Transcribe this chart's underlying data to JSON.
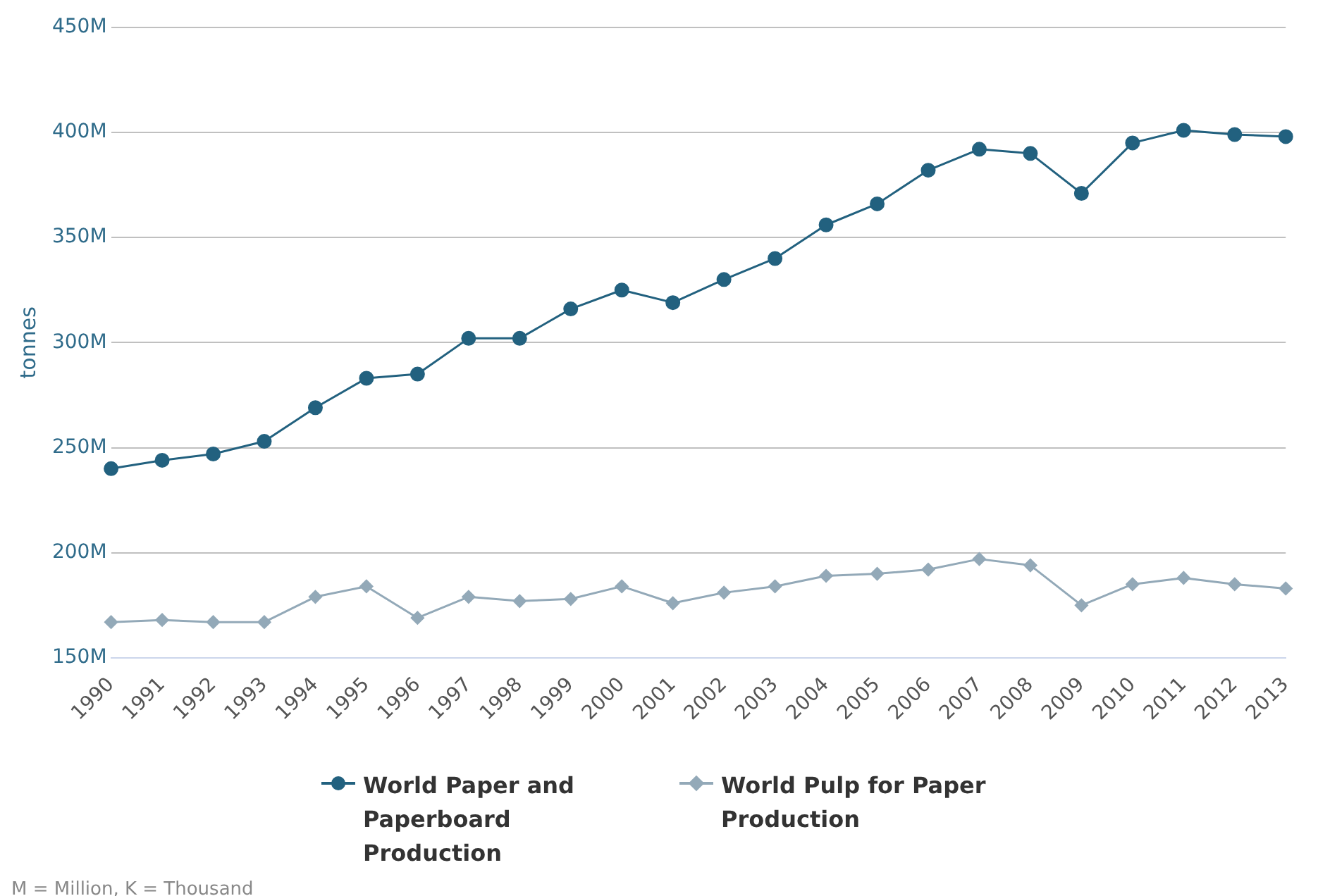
{
  "chart_data": {
    "type": "line",
    "ylabel": "tonnes",
    "categories": [
      "1990",
      "1991",
      "1992",
      "1993",
      "1994",
      "1995",
      "1996",
      "1997",
      "1998",
      "1999",
      "2000",
      "2001",
      "2002",
      "2003",
      "2004",
      "2005",
      "2006",
      "2007",
      "2008",
      "2009",
      "2010",
      "2011",
      "2012",
      "2013"
    ],
    "series": [
      {
        "name": "World Paper and Paperboard Production",
        "color": "#22617f",
        "marker": "circle",
        "values": [
          240000000,
          244000000,
          247000000,
          253000000,
          269000000,
          283000000,
          285000000,
          302000000,
          302000000,
          316000000,
          325000000,
          319000000,
          330000000,
          340000000,
          356000000,
          366000000,
          382000000,
          392000000,
          390000000,
          371000000,
          395000000,
          401000000,
          399000000,
          398000000
        ]
      },
      {
        "name": "World Pulp for Paper Production",
        "color": "#93a9b8",
        "marker": "diamond",
        "values": [
          167000000,
          168000000,
          167000000,
          167000000,
          179000000,
          184000000,
          169000000,
          179000000,
          177000000,
          178000000,
          184000000,
          176000000,
          181000000,
          184000000,
          189000000,
          190000000,
          192000000,
          197000000,
          194000000,
          175000000,
          185000000,
          188000000,
          185000000,
          183000000
        ]
      }
    ],
    "ylim": [
      150000000,
      450000000
    ],
    "yticks": [
      {
        "value": 150000000,
        "label": "150M"
      },
      {
        "value": 200000000,
        "label": "200M"
      },
      {
        "value": 250000000,
        "label": "250M"
      },
      {
        "value": 300000000,
        "label": "300M"
      },
      {
        "value": 350000000,
        "label": "350M"
      },
      {
        "value": 400000000,
        "label": "400M"
      },
      {
        "value": 450000000,
        "label": "450M"
      }
    ],
    "grid": "y",
    "legend": "bottom",
    "line_style": "solid",
    "annotations": [
      "M = Million, K = Thousand"
    ]
  }
}
